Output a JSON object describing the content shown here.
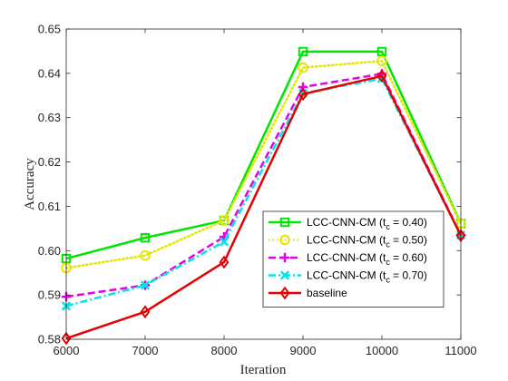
{
  "chart_data": {
    "type": "line",
    "xlabel": "Iteration",
    "ylabel": "Accuracy",
    "xlim": [
      6000,
      11000
    ],
    "ylim": [
      0.58,
      0.65
    ],
    "x": [
      6000,
      7000,
      8000,
      9000,
      10000,
      11000
    ],
    "x_ticks": [
      6000,
      7000,
      8000,
      9000,
      10000,
      11000
    ],
    "y_ticks": [
      0.58,
      0.59,
      0.6,
      0.61,
      0.62,
      0.63,
      0.64,
      0.65
    ],
    "grid": false,
    "legend_position": "lower-right",
    "series": [
      {
        "legend_text": "LCC-CNN-CM (t",
        "legend_sub": "c",
        "legend_tail": " = 0.40)",
        "values": [
          0.5982,
          0.6029,
          0.6068,
          0.6449,
          0.6449,
          0.6061
        ],
        "color": "#00e600",
        "dash": "solid",
        "marker": "square"
      },
      {
        "legend_text": "LCC-CNN-CM (t",
        "legend_sub": "c",
        "legend_tail": " = 0.50)",
        "values": [
          0.5961,
          0.5989,
          0.6068,
          0.6413,
          0.6428,
          0.6061
        ],
        "color": "#e6e600",
        "dash": "dotted",
        "marker": "circle"
      },
      {
        "legend_text": "LCC-CNN-CM (t",
        "legend_sub": "c",
        "legend_tail": " = 0.60)",
        "values": [
          0.5896,
          0.5922,
          0.6031,
          0.6369,
          0.6399,
          0.6035
        ],
        "color": "#e600e6",
        "dash": "dashed",
        "marker": "plus"
      },
      {
        "legend_text": "LCC-CNN-CM (t",
        "legend_sub": "c",
        "legend_tail": " = 0.70)",
        "values": [
          0.5875,
          0.5922,
          0.602,
          0.6355,
          0.6388,
          0.6035
        ],
        "color": "#00e6e6",
        "dash": "dashdot",
        "marker": "x"
      },
      {
        "legend_text": "baseline",
        "legend_sub": "",
        "legend_tail": "",
        "values": [
          0.5802,
          0.5862,
          0.5974,
          0.6353,
          0.6394,
          0.6034
        ],
        "color": "#e60000",
        "dash": "solid",
        "marker": "diamond"
      }
    ]
  }
}
